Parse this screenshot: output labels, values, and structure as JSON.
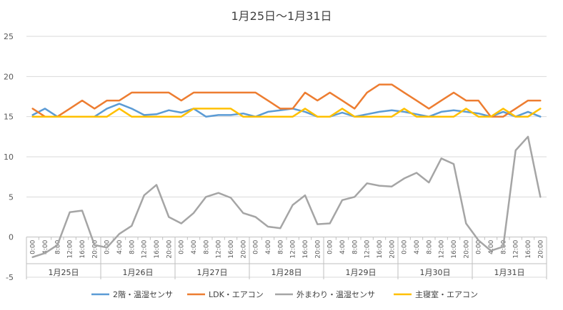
{
  "chart_data": {
    "type": "line",
    "title": "1月25日～1月31日",
    "xlabel": "",
    "ylabel": "",
    "ylim": [
      -5,
      25
    ],
    "yticks": [
      -5,
      0,
      5,
      10,
      15,
      20,
      25
    ],
    "grid": "horizontal",
    "legend_position": "bottom",
    "time_labels": [
      "0:00",
      "4:00",
      "8:00",
      "12:00",
      "16:00",
      "20:00"
    ],
    "days": [
      "1月25日",
      "1月26日",
      "1月27日",
      "1月28日",
      "1月29日",
      "1月30日",
      "1月31日"
    ],
    "points_per_day": 6,
    "series": [
      {
        "name": "2階・温湿センサ",
        "color": "#5B9BD5",
        "values": [
          15.2,
          16.0,
          15.0,
          15.0,
          15.0,
          15.0,
          16.0,
          16.6,
          16.0,
          15.2,
          15.3,
          15.8,
          15.5,
          16.0,
          15.0,
          15.2,
          15.2,
          15.4,
          15.0,
          15.6,
          15.8,
          16.0,
          15.6,
          15.0,
          15.0,
          15.5,
          15.0,
          15.3,
          15.6,
          15.8,
          15.6,
          15.3,
          15.0,
          15.6,
          15.8,
          15.6,
          15.4,
          15.0,
          15.6,
          15.0,
          15.6,
          15.0
        ]
      },
      {
        "name": "LDK・エアコン",
        "color": "#ED7D31",
        "values": [
          16.0,
          15.0,
          15.0,
          16.0,
          17.0,
          16.0,
          17.0,
          17.0,
          18.0,
          18.0,
          18.0,
          18.0,
          17.0,
          18.0,
          18.0,
          18.0,
          18.0,
          18.0,
          18.0,
          17.0,
          16.0,
          16.0,
          18.0,
          17.0,
          18.0,
          17.0,
          16.0,
          18.0,
          19.0,
          19.0,
          18.0,
          17.0,
          16.0,
          17.0,
          18.0,
          17.0,
          17.0,
          15.0,
          15.0,
          16.0,
          17.0,
          17.0
        ]
      },
      {
        "name": "外まわり・温湿センサ",
        "color": "#A5A5A5",
        "values": [
          -2.5,
          -2.0,
          -1.0,
          3.1,
          3.3,
          -1.0,
          -1.3,
          0.4,
          1.4,
          5.2,
          6.5,
          2.5,
          1.7,
          3.0,
          5.0,
          5.5,
          4.9,
          3.0,
          2.5,
          1.3,
          1.1,
          4.0,
          5.2,
          1.6,
          1.7,
          4.6,
          5.0,
          6.7,
          6.4,
          6.3,
          7.3,
          8.0,
          6.8,
          9.8,
          9.1,
          1.7,
          -0.4,
          -1.7,
          -1.2,
          10.8,
          12.5,
          5.0
        ]
      },
      {
        "name": "主寝室・エアコン",
        "color": "#FFC000",
        "values": [
          15.0,
          15.0,
          15.0,
          15.0,
          15.0,
          15.0,
          15.0,
          16.0,
          15.0,
          15.0,
          15.0,
          15.0,
          15.0,
          16.0,
          16.0,
          16.0,
          16.0,
          15.0,
          15.0,
          15.0,
          15.0,
          15.0,
          16.0,
          15.0,
          15.0,
          16.0,
          15.0,
          15.0,
          15.0,
          15.0,
          16.0,
          15.0,
          15.0,
          15.0,
          15.0,
          16.0,
          15.0,
          15.0,
          16.0,
          15.0,
          15.0,
          16.0
        ]
      }
    ]
  }
}
